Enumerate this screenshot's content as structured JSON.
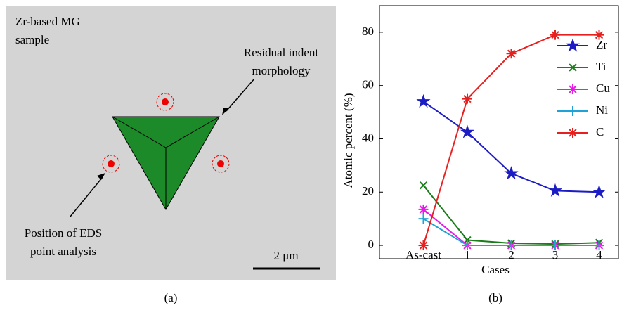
{
  "panel_a": {
    "sample_label": [
      "Zr-based MG",
      "sample"
    ],
    "indent_label": [
      "Residual indent",
      "morphology"
    ],
    "eds_label": [
      "Position of EDS",
      "point analysis"
    ],
    "scale_bar": "2 μm",
    "caption": "(a)"
  },
  "chart_data": {
    "type": "line",
    "xlabel": "Cases",
    "ylabel": "Atomic percent (%)",
    "caption": "(b)",
    "categories": [
      "As-cast",
      "1",
      "2",
      "3",
      "4"
    ],
    "series": [
      {
        "name": "Zr",
        "color": "#1c1cc4",
        "marker": "star",
        "values": [
          54,
          42.5,
          27,
          20.5,
          20
        ]
      },
      {
        "name": "Ti",
        "color": "#1a7d1a",
        "marker": "x",
        "values": [
          22.5,
          2,
          0.8,
          0.5,
          1
        ]
      },
      {
        "name": "Cu",
        "color": "#e619e6",
        "marker": "asterisk",
        "values": [
          13.5,
          0,
          0,
          0,
          0
        ]
      },
      {
        "name": "Ni",
        "color": "#1fa3d6",
        "marker": "plus",
        "values": [
          10,
          0,
          0,
          0,
          0
        ]
      },
      {
        "name": "C",
        "color": "#e61f1f",
        "marker": "asterisk",
        "values": [
          0,
          55,
          72,
          79,
          79
        ]
      }
    ],
    "ylim": [
      -5,
      90
    ],
    "yticks": [
      0,
      20,
      40,
      60,
      80
    ],
    "grid": false,
    "legend": "upper right"
  }
}
